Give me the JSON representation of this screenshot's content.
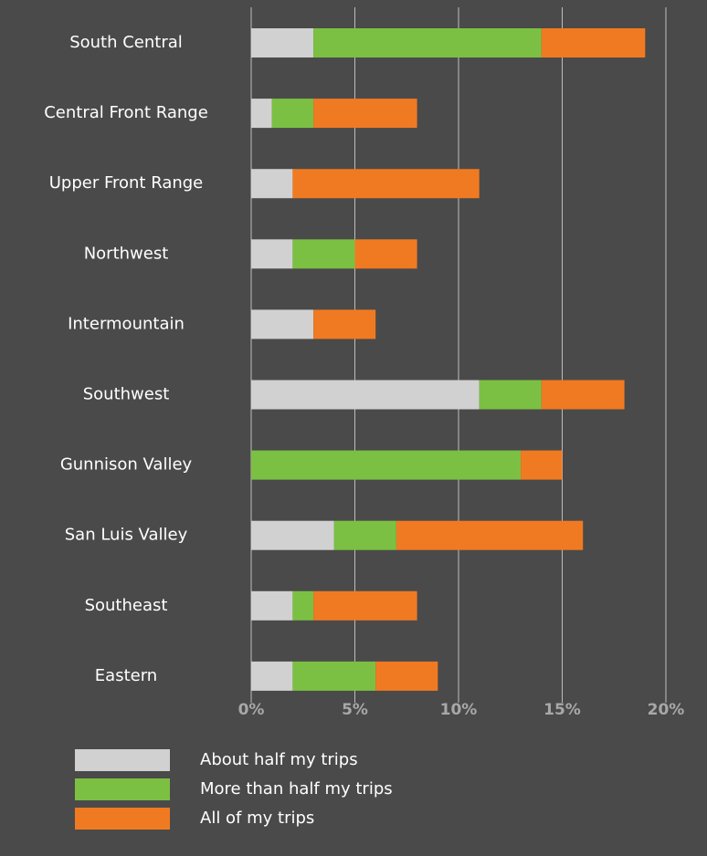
{
  "chart_data": {
    "type": "stacked_bar_horizontal",
    "categories": [
      "South Central",
      "Central Front Range",
      "Upper Front Range",
      "Northwest",
      "Intermountain",
      "Southwest",
      "Gunnison Valley",
      "San Luis Valley",
      "Southeast",
      "Eastern"
    ],
    "series": [
      {
        "name": "About half my trips",
        "color": "#d1d1d1",
        "values": [
          3,
          1,
          2,
          2,
          3,
          11,
          0,
          4,
          2,
          2
        ]
      },
      {
        "name": "More than half my trips",
        "color": "#7cc043",
        "values": [
          11,
          2,
          0,
          3,
          0,
          3,
          13,
          3,
          1,
          4
        ]
      },
      {
        "name": "All of my trips",
        "color": "#f07a22",
        "values": [
          5,
          5,
          9,
          3,
          3,
          4,
          2,
          9,
          5,
          3
        ]
      }
    ],
    "xlim": [
      0,
      20
    ],
    "xticks": [
      {
        "value": 0,
        "label": "0%"
      },
      {
        "value": 5,
        "label": "5%"
      },
      {
        "value": 10,
        "label": "10%"
      },
      {
        "value": 15,
        "label": "15%"
      },
      {
        "value": 20,
        "label": "20%"
      }
    ],
    "grid": true,
    "legend": "bottom-left"
  }
}
